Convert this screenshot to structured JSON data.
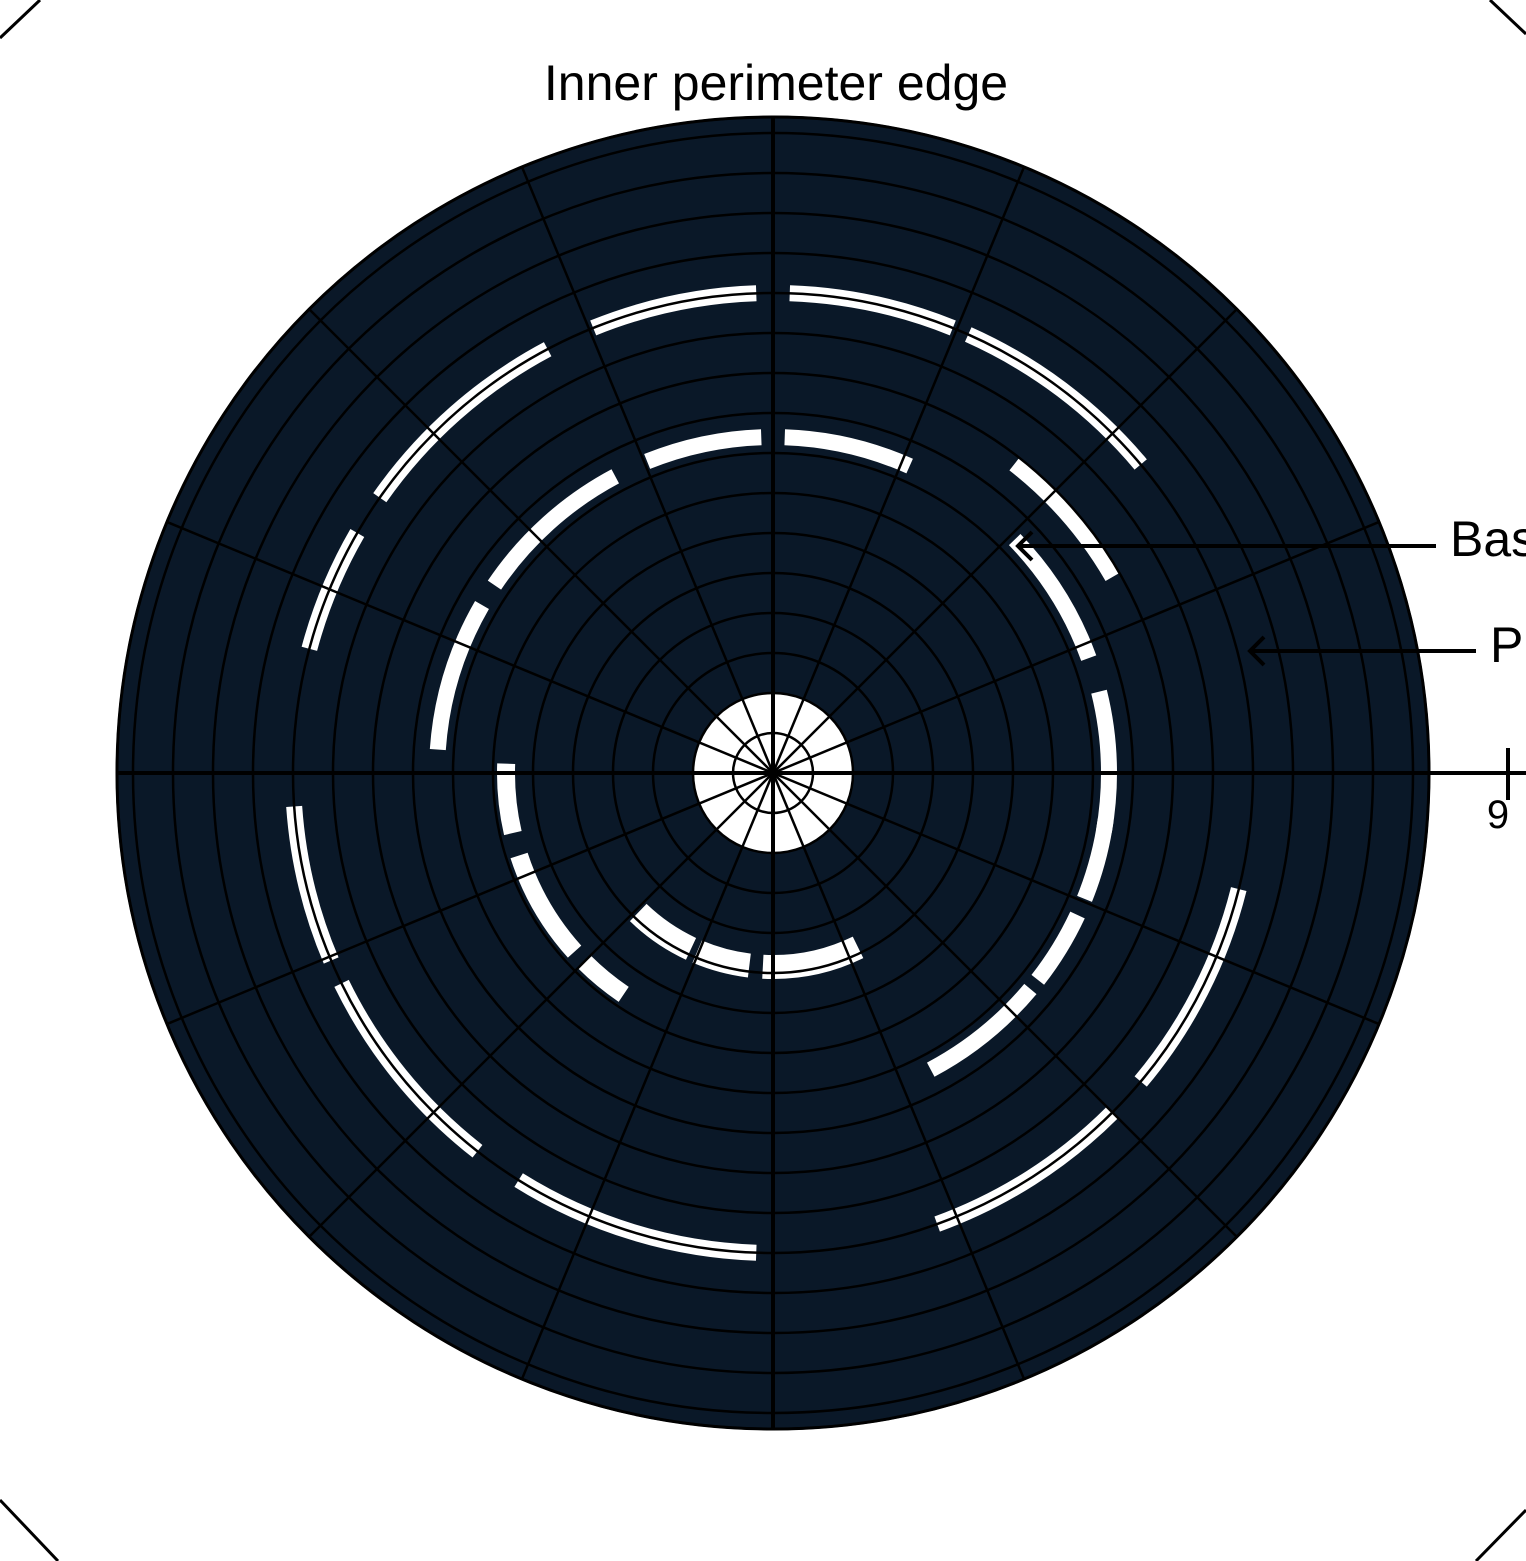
{
  "title": "Inner perimeter edge",
  "callouts": [
    {
      "id": "bas",
      "text": "Bas"
    },
    {
      "id": "p",
      "text": "P"
    }
  ],
  "scale_tick_label": "9",
  "colors": {
    "background": "#ffffff",
    "fill": "#0a1828",
    "line": "#000000",
    "gap": "#ffffff"
  },
  "structure": {
    "ring_count": 17,
    "sector_count": 16
  }
}
